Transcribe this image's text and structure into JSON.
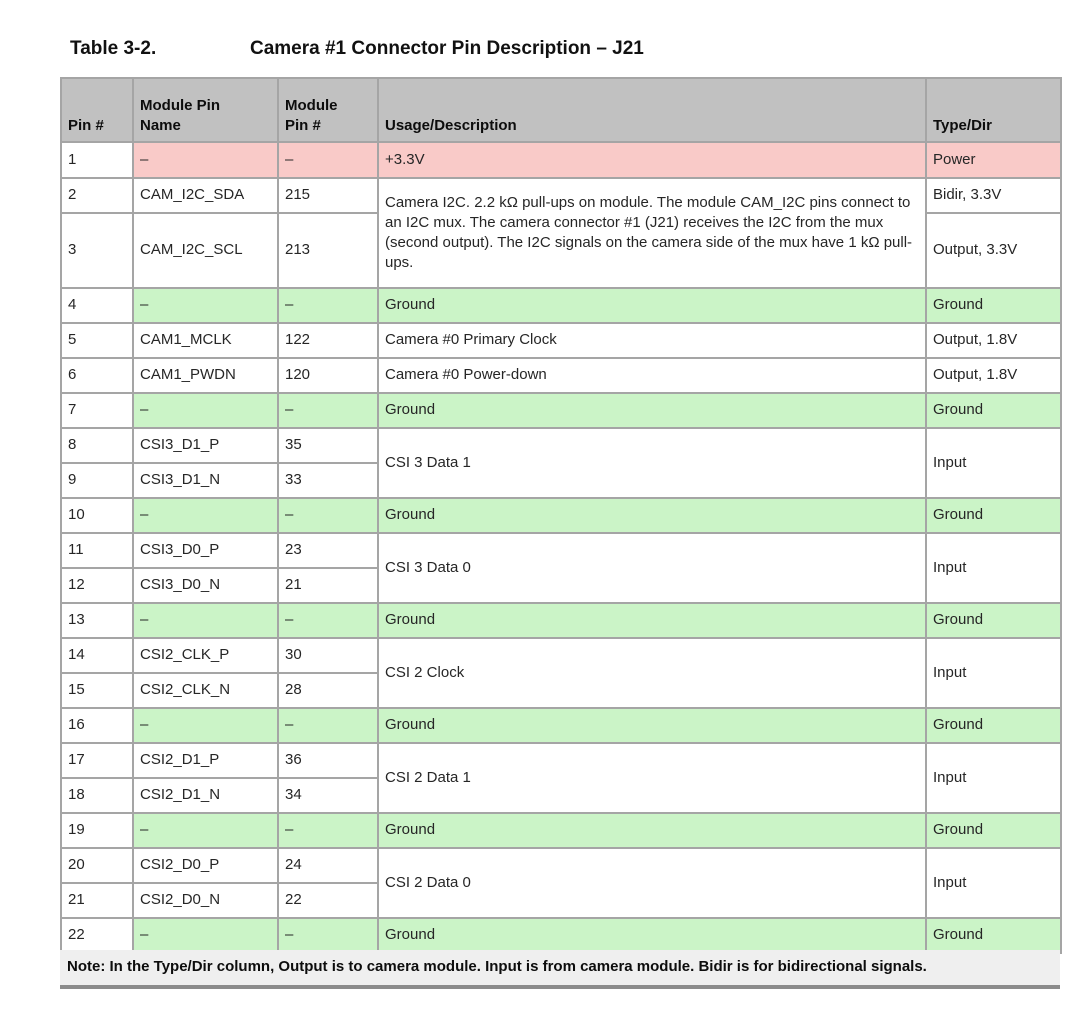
{
  "caption": {
    "label": "Table 3-2.",
    "title": "Camera #1 Connector Pin Description – J21"
  },
  "table": {
    "headers": {
      "pin": "Pin #",
      "name_l1": "Module Pin",
      "name_l2": "Name",
      "mpin_l1": "Module",
      "mpin_l2": "Pin #",
      "usage": "Usage/Description",
      "type": "Type/Dir"
    },
    "rows": [
      {
        "pin": "1",
        "name": "–",
        "mpin": "–",
        "desc": "+3.3V",
        "type": "Power",
        "highlight": "power"
      },
      {
        "pin": "2",
        "name": "CAM_I2C_SDA",
        "mpin": "215",
        "desc": "Camera I2C. 2.2 kΩ pull-ups on module. The module CAM_I2C pins connect to an I2C mux. The camera connector #1 (J21) receives the I2C from the mux (second output). The I2C signals on the camera side of the mux have 1 kΩ pull-ups.",
        "type": "Bidir, 3.3V"
      },
      {
        "pin": "3",
        "name": "CAM_I2C_SCL",
        "mpin": "213",
        "type": "Output, 3.3V"
      },
      {
        "pin": "4",
        "name": "–",
        "mpin": "–",
        "desc": "Ground",
        "type": "Ground",
        "highlight": "ground"
      },
      {
        "pin": "5",
        "name": "CAM1_MCLK",
        "mpin": "122",
        "desc": "Camera #0 Primary Clock",
        "type": "Output, 1.8V"
      },
      {
        "pin": "6",
        "name": "CAM1_PWDN",
        "mpin": "120",
        "desc": "Camera #0 Power-down",
        "type": "Output, 1.8V"
      },
      {
        "pin": "7",
        "name": "–",
        "mpin": "–",
        "desc": "Ground",
        "type": "Ground",
        "highlight": "ground"
      },
      {
        "pin": "8",
        "name": "CSI3_D1_P",
        "mpin": "35",
        "desc": "CSI 3 Data 1",
        "type": "Input"
      },
      {
        "pin": "9",
        "name": "CSI3_D1_N",
        "mpin": "33"
      },
      {
        "pin": "10",
        "name": "–",
        "mpin": "–",
        "desc": "Ground",
        "type": "Ground",
        "highlight": "ground"
      },
      {
        "pin": "11",
        "name": "CSI3_D0_P",
        "mpin": "23",
        "desc": "CSI 3 Data 0",
        "type": "Input"
      },
      {
        "pin": "12",
        "name": "CSI3_D0_N",
        "mpin": "21"
      },
      {
        "pin": "13",
        "name": "–",
        "mpin": "–",
        "desc": "Ground",
        "type": "Ground",
        "highlight": "ground"
      },
      {
        "pin": "14",
        "name": "CSI2_CLK_P",
        "mpin": "30",
        "desc": "CSI 2 Clock",
        "type": "Input"
      },
      {
        "pin": "15",
        "name": "CSI2_CLK_N",
        "mpin": "28"
      },
      {
        "pin": "16",
        "name": "–",
        "mpin": "–",
        "desc": "Ground",
        "type": "Ground",
        "highlight": "ground"
      },
      {
        "pin": "17",
        "name": "CSI2_D1_P",
        "mpin": "36",
        "desc": "CSI 2 Data 1",
        "type": "Input"
      },
      {
        "pin": "18",
        "name": "CSI2_D1_N",
        "mpin": "34"
      },
      {
        "pin": "19",
        "name": "–",
        "mpin": "–",
        "desc": "Ground",
        "type": "Ground",
        "highlight": "ground"
      },
      {
        "pin": "20",
        "name": "CSI2_D0_P",
        "mpin": "24",
        "desc": "CSI 2 Data 0",
        "type": "Input"
      },
      {
        "pin": "21",
        "name": "CSI2_D0_N",
        "mpin": "22"
      },
      {
        "pin": "22",
        "name": "–",
        "mpin": "–",
        "desc": "Ground",
        "type": "Ground",
        "highlight": "ground"
      }
    ]
  },
  "note": "Note: In the Type/Dir column, Output is to camera module. Input is from camera module. Bidir is for bidirectional signals.",
  "colors": {
    "power_row": "#f9cac8",
    "ground_row": "#cbf4c7",
    "header_bg": "#c1c1c1",
    "note_bg": "#efefef",
    "border": "#a5a5a5"
  }
}
